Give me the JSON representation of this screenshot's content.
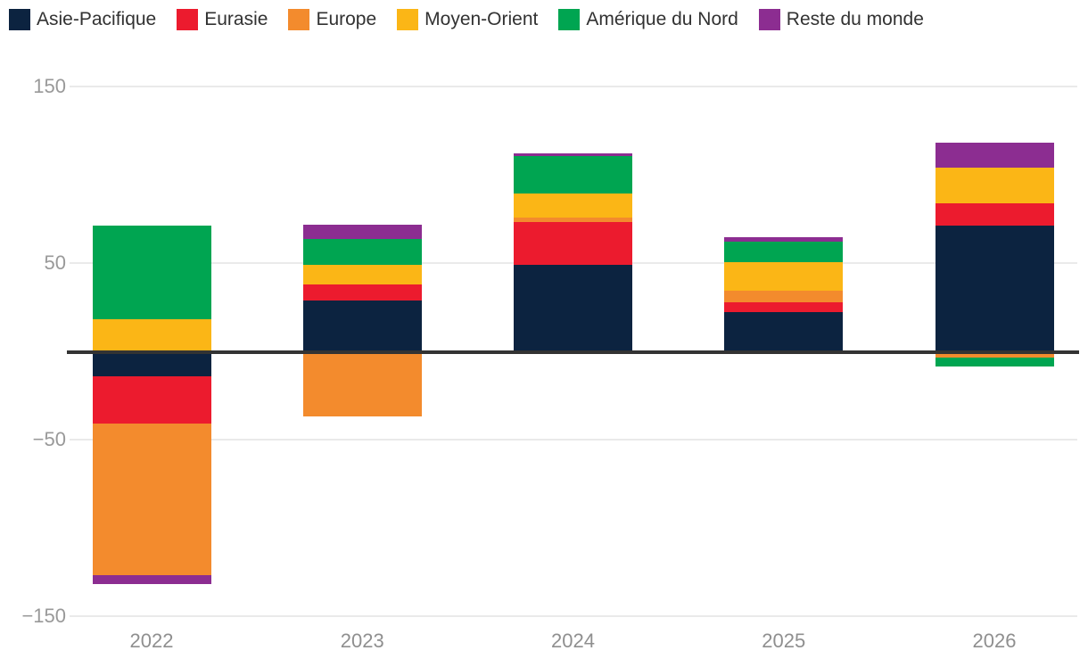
{
  "chart_data": {
    "type": "bar",
    "stacked": true,
    "title": "",
    "xlabel": "",
    "ylabel": "",
    "categories": [
      "2022",
      "2023",
      "2024",
      "2025",
      "2026"
    ],
    "series": [
      {
        "name": "Asie-Pacifique",
        "color": "#0c2340",
        "values": [
          -14,
          29,
          49,
          22,
          71
        ]
      },
      {
        "name": "Eurasie",
        "color": "#ec1b2e",
        "values": [
          -27,
          9,
          24,
          6,
          13
        ]
      },
      {
        "name": "Europe",
        "color": "#f38b2d",
        "values": [
          -86,
          -37,
          3,
          6.5,
          -3.5
        ]
      },
      {
        "name": "Moyen-Orient",
        "color": "#fbb616",
        "values": [
          18,
          11,
          13.5,
          16,
          20
        ]
      },
      {
        "name": "Amérique du Nord",
        "color": "#00a551",
        "values": [
          53,
          14.5,
          21,
          11.5,
          -5
        ]
      },
      {
        "name": "Reste du monde",
        "color": "#8c2d91",
        "values": [
          -5,
          8,
          1.5,
          2.5,
          14
        ]
      }
    ],
    "ylim": [
      -150,
      150
    ],
    "yticks": [
      {
        "value": 150,
        "label": "150"
      },
      {
        "value": 50,
        "label": "50"
      },
      {
        "value": -50,
        "label": "−50"
      },
      {
        "value": -150,
        "label": "−150"
      }
    ],
    "baseline": 0,
    "grid": true,
    "legend_position": "top"
  },
  "style": {
    "background": "#ffffff",
    "gridline_color": "#eaeaea",
    "zero_line_color": "#333333",
    "tick_text_color": "#999999",
    "x_label_color": "#8f8f8f",
    "legend_text_color": "#323232"
  }
}
